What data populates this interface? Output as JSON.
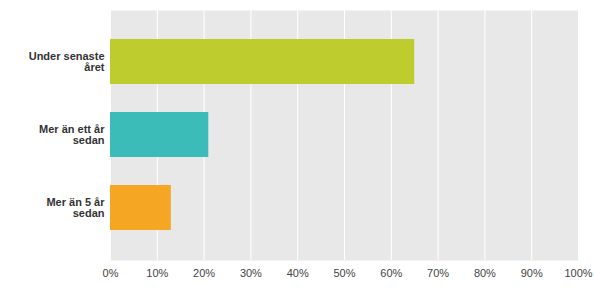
{
  "chart_data": {
    "type": "bar",
    "orientation": "horizontal",
    "categories": [
      "Mer än 5 år\nsedan",
      "Mer än ett år\nsedan",
      "Under senaste\nåret"
    ],
    "values": [
      13,
      21,
      65
    ],
    "colors": [
      "#F5A623",
      "#3BBCB8",
      "#BFCC2E"
    ],
    "xlim": [
      0,
      100
    ],
    "xticks": [
      {
        "value": 0,
        "label": "0%"
      },
      {
        "value": 10,
        "label": "10%"
      },
      {
        "value": 20,
        "label": "20%"
      },
      {
        "value": 30,
        "label": "30%"
      },
      {
        "value": 40,
        "label": "40%"
      },
      {
        "value": 50,
        "label": "50%"
      },
      {
        "value": 60,
        "label": "60%"
      },
      {
        "value": 70,
        "label": "70%"
      },
      {
        "value": 80,
        "label": "80%"
      },
      {
        "value": 90,
        "label": "90%"
      },
      {
        "value": 100,
        "label": "100%"
      }
    ],
    "grid": true
  }
}
